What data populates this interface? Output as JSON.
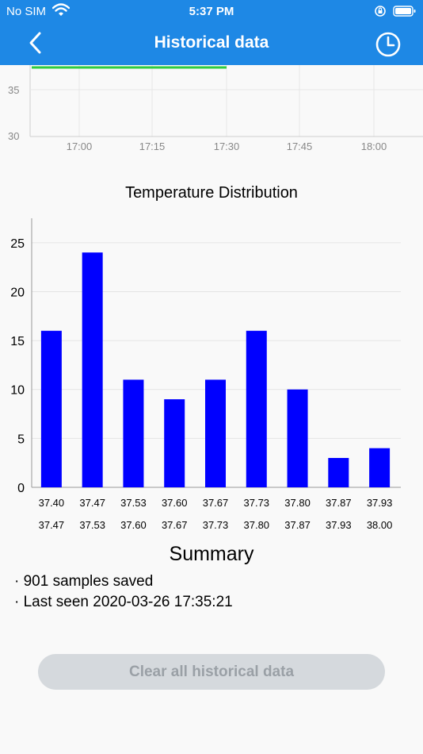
{
  "status_bar": {
    "carrier": "No SIM",
    "time": "5:37 PM"
  },
  "nav": {
    "title": "Historical data",
    "back_icon": "chevron-left-icon",
    "history_icon": "clock-icon"
  },
  "line_chart": {
    "y_ticks": [
      "35",
      "30"
    ],
    "x_ticks": [
      "17:00",
      "17:15",
      "17:30",
      "17:45",
      "18:00"
    ],
    "series_color": "#2ecc40"
  },
  "chart_data": {
    "type": "bar",
    "title": "Temperature Distribution",
    "categories_lower": [
      "37.40",
      "37.47",
      "37.53",
      "37.60",
      "37.67",
      "37.73",
      "37.80",
      "37.87",
      "37.93"
    ],
    "categories_upper": [
      "37.47",
      "37.53",
      "37.60",
      "37.67",
      "37.73",
      "37.80",
      "37.87",
      "37.93",
      "38.00"
    ],
    "values": [
      16,
      24,
      11,
      9,
      11,
      16,
      10,
      3,
      4
    ],
    "ylim": [
      0,
      27.5
    ],
    "y_ticks": [
      0,
      5,
      10,
      15,
      20,
      25
    ],
    "bar_color": "#0000ff",
    "grid": true
  },
  "summary": {
    "title": "Summary",
    "items": [
      "901 samples saved",
      "Last seen 2020-03-26 17:35:21"
    ]
  },
  "clear_button": {
    "label": "Clear all historical data"
  },
  "colors": {
    "header": "#1e88e5",
    "button_bg": "#d5d9dd",
    "button_text": "#9aa0a6"
  }
}
